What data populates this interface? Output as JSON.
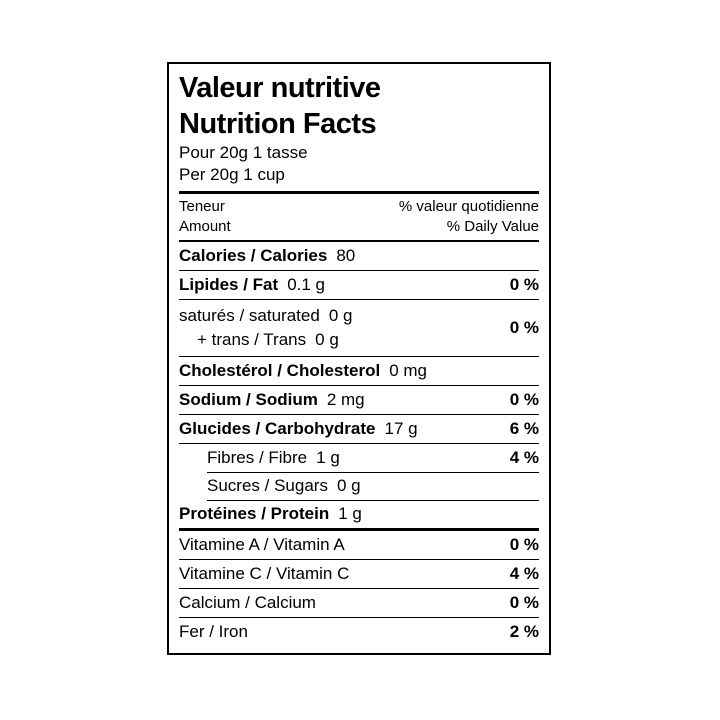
{
  "label": {
    "title_fr": "Valeur nutritive",
    "title_en": "Nutrition Facts",
    "serving_fr": "Pour 20g 1 tasse",
    "serving_en": "Per 20g 1 cup",
    "columns": {
      "amount_fr": "Teneur",
      "amount_en": "Amount",
      "daily_value_fr": "% valeur quotidienne",
      "daily_value_en": "% Daily Value"
    },
    "rows": [
      {
        "label": "Calories / Calories",
        "amount": "80"
      },
      {
        "label": "Lipides / Fat",
        "amount": "0.1 g",
        "dv": "0 %"
      },
      {
        "label": "saturés / saturated",
        "amount": "0 g",
        "label2": "+ trans / Trans",
        "amount2": "0 g",
        "dv": "0 %"
      },
      {
        "label": "Cholestérol / Cholesterol",
        "amount": "0 mg"
      },
      {
        "label": "Sodium / Sodium",
        "amount": "2 mg",
        "dv": "0 %"
      },
      {
        "label": "Glucides / Carbohydrate",
        "amount": "17 g",
        "dv": "6 %"
      },
      {
        "label": "Fibres / Fibre",
        "amount": "1 g",
        "dv": "4 %"
      },
      {
        "label": "Sucres / Sugars",
        "amount": "0 g"
      },
      {
        "label": "Protéines / Protein",
        "amount": "1 g"
      },
      {
        "label": "Vitamine A / Vitamin A",
        "dv": "0 %"
      },
      {
        "label": "Vitamine C / Vitamin C",
        "dv": "4 %"
      },
      {
        "label": "Calcium / Calcium",
        "dv": "0 %"
      },
      {
        "label": "Fer / Iron",
        "dv": "2 %"
      }
    ]
  }
}
